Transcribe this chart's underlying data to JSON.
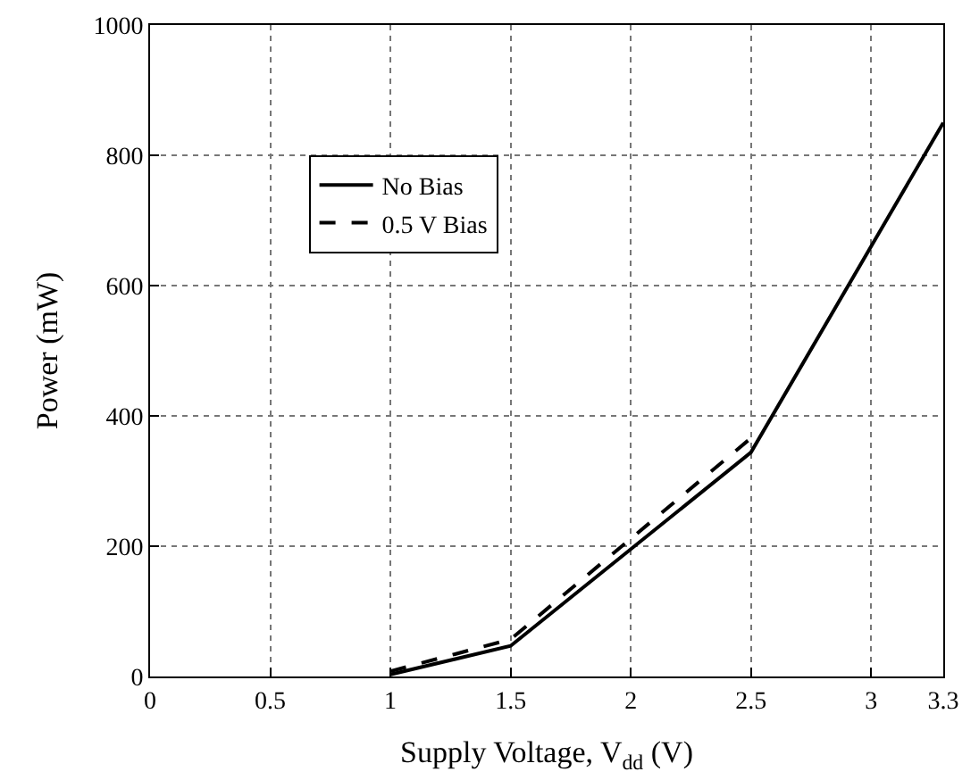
{
  "chart_data": {
    "type": "line",
    "xlabel": "Supply Voltage, V$_{dd}$ (V)",
    "ylabel": "Power (mW)",
    "xlim": [
      0,
      3.3
    ],
    "xticks": [
      0,
      0.5,
      1,
      1.5,
      2,
      2.5,
      3,
      3.3
    ],
    "ylim": [
      0,
      1000
    ],
    "yticks": [
      0,
      200,
      400,
      600,
      800,
      1000
    ],
    "grid": true,
    "legend": "top left",
    "marker": "none",
    "series": [
      {
        "name": "No Bias",
        "color": "#000000",
        "line_style": "solid",
        "x": [
          1,
          1.5,
          2.5,
          3.3
        ],
        "values": [
          3,
          47,
          344,
          850
        ]
      },
      {
        "name": "0.5 V Bias",
        "color": "#000000",
        "line_style": "dashed",
        "x": [
          1,
          1.5,
          2.5
        ],
        "values": [
          8,
          57,
          366
        ]
      }
    ]
  }
}
